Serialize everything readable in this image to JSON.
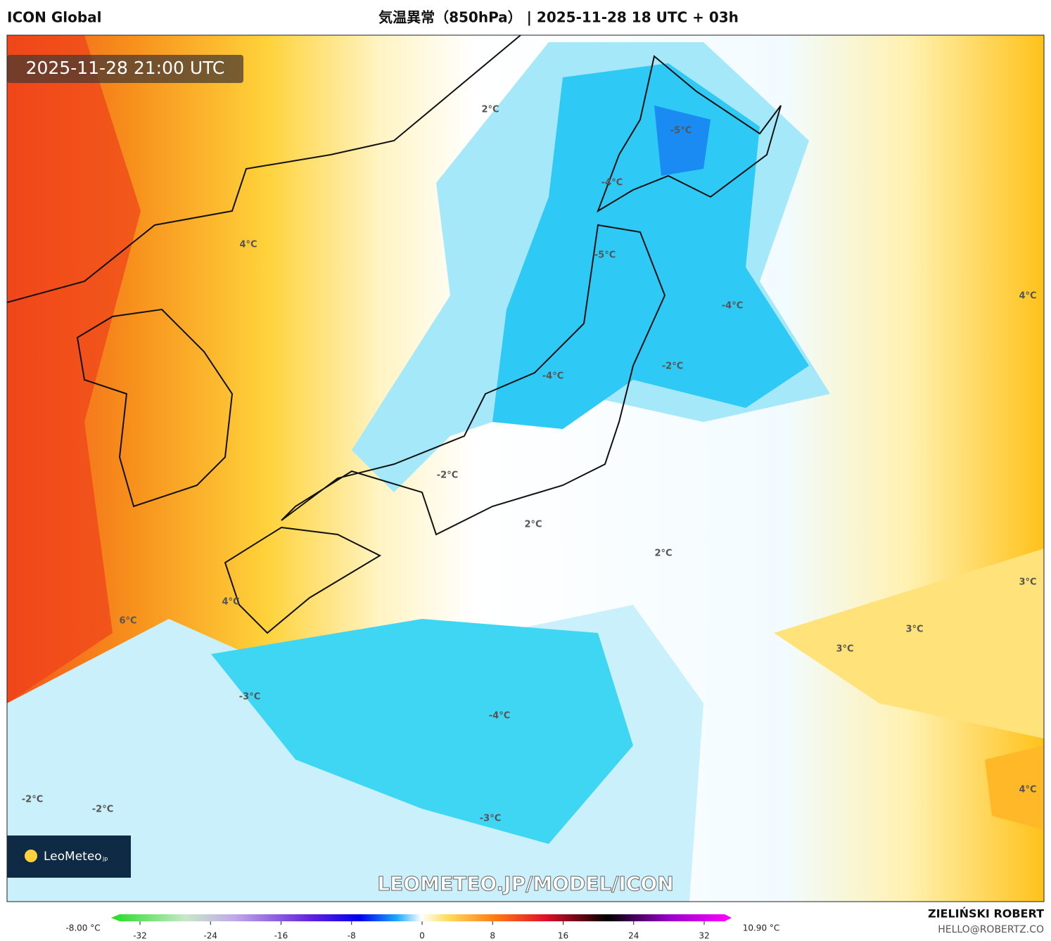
{
  "header": {
    "model": "ICON Global",
    "title": "気温異常（850hPa） | 2025-11-28 18 UTC + 03h"
  },
  "map": {
    "timestamp": "2025-11-28 21:00 UTC",
    "contour_labels": [
      "2°C",
      "-5°C",
      "-4°C",
      "-5°C",
      "4°C",
      "-4°C",
      "4°C",
      "-2°C",
      "-4°C",
      "-2°C",
      "2°C",
      "2°C",
      "3°C",
      "4°C",
      "6°C",
      "3°C",
      "3°C",
      "-3°C",
      "-4°C",
      "4°C",
      "-2°C",
      "-2°C",
      "-3°C"
    ],
    "logo": "LeoMeteo",
    "logo_suffix": "jp",
    "watermark": "LEOMETEO.JP/MODEL/ICON"
  },
  "colorbar": {
    "min_label": "-8.00 °C",
    "max_label": "10.90 °C",
    "ticks": [
      -32,
      -24,
      -16,
      -8,
      0,
      8,
      16,
      24,
      32
    ]
  },
  "credit": {
    "author": "ZIELIŃSKI ROBERT",
    "email": "HELLO@ROBERTZ.CO"
  }
}
